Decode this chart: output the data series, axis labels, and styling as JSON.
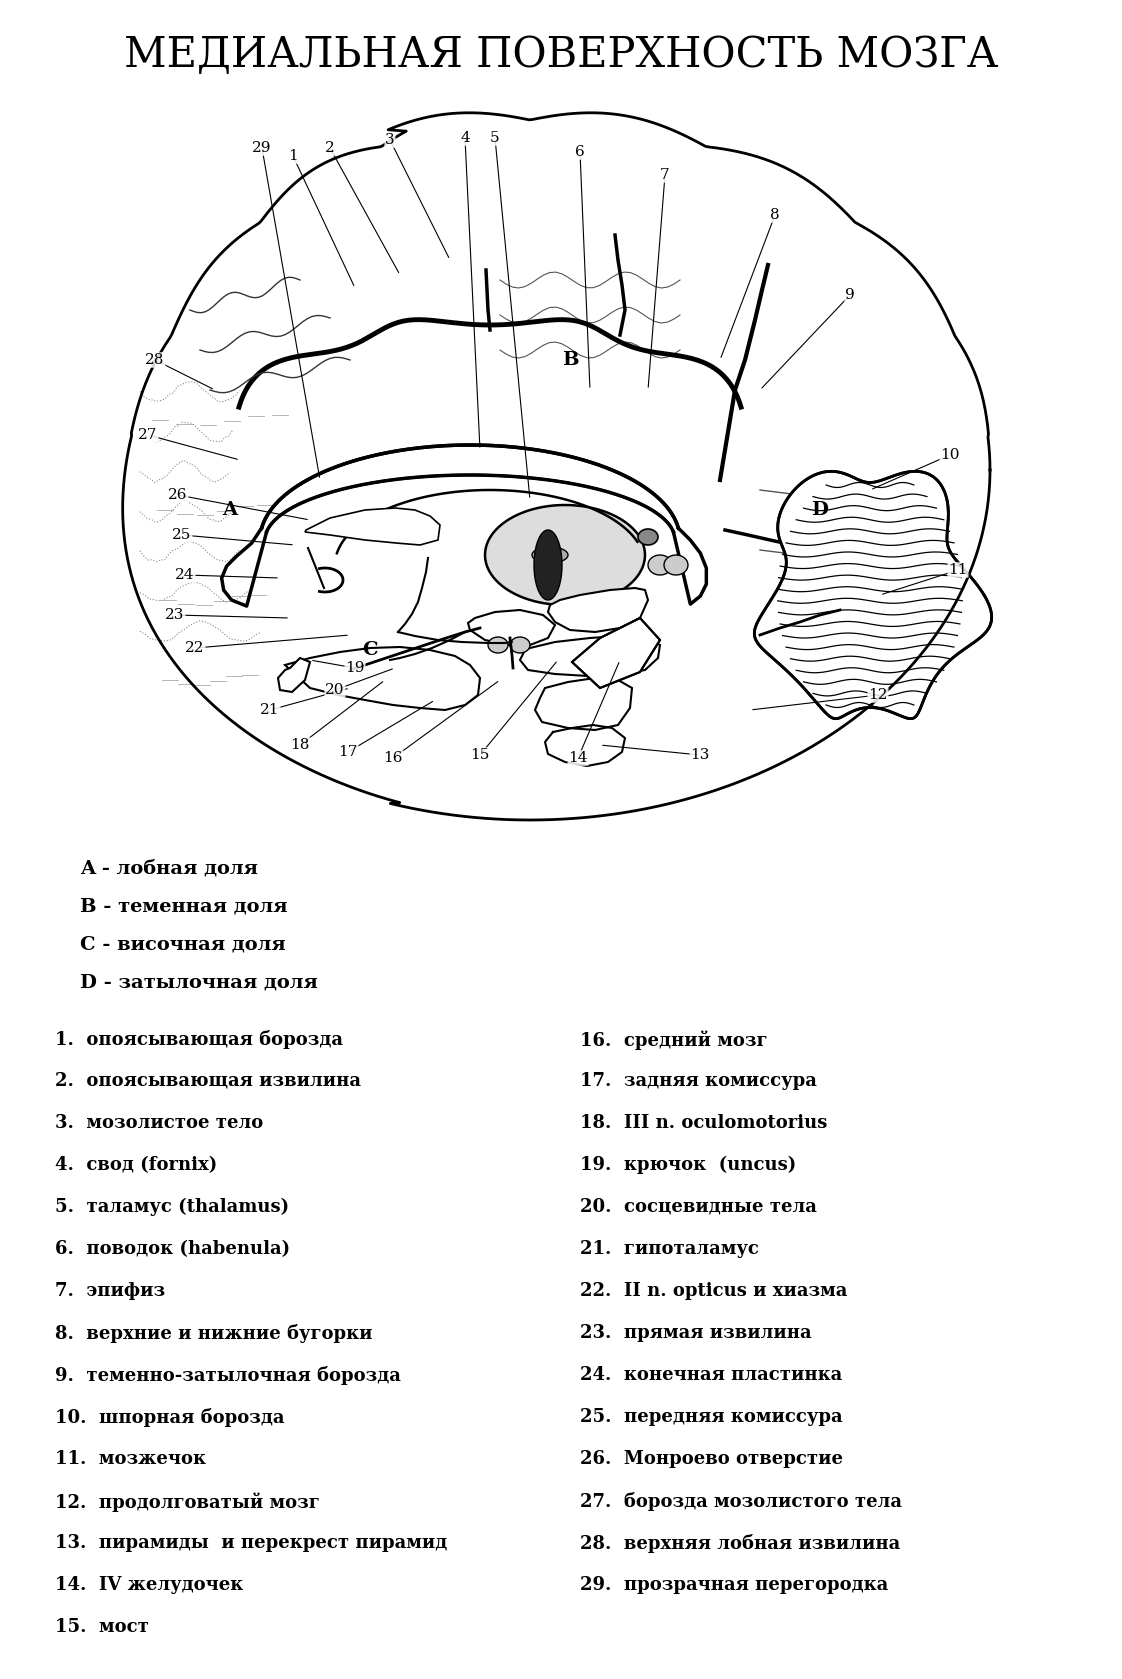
{
  "title": "МЕДИАЛЬНАЯ ПОВЕРХНОСТЬ МОЗГА",
  "title_fontsize": 30,
  "background_color": "#ffffff",
  "lobe_descriptions": [
    "A - лобная доля",
    "B - теменная доля",
    "C - височная доля",
    "D - затылочная доля"
  ],
  "left_labels": [
    {
      "num": "1",
      "text": "опоясывающая борозда"
    },
    {
      "num": "2",
      "text": "опоясывающая извилина"
    },
    {
      "num": "3",
      "text": "мозолистое тело"
    },
    {
      "num": "4",
      "text": "свод (fornix)"
    },
    {
      "num": "5",
      "text": "таламус (thalamus)"
    },
    {
      "num": "6",
      "text": "поводок (habenula)"
    },
    {
      "num": "7",
      "text": "эпифиз"
    },
    {
      "num": "8",
      "text": "верхние и нижние бугорки"
    },
    {
      "num": "9",
      "text": "теменно-затылочная борозда"
    },
    {
      "num": "10",
      "text": "шпорная борозда"
    },
    {
      "num": "11",
      "text": "мозжечок"
    },
    {
      "num": "12",
      "text": "продолговатый мозг"
    },
    {
      "num": "13",
      "text": "пирамиды  и перекрест пирамид"
    },
    {
      "num": "14",
      "text": "IV желудочек"
    },
    {
      "num": "15",
      "text": "мост"
    }
  ],
  "right_labels": [
    {
      "num": "16",
      "text": "средний мозг"
    },
    {
      "num": "17",
      "text": "задняя комиссура"
    },
    {
      "num": "18",
      "text": "III n. oculomotorius"
    },
    {
      "num": "19",
      "text": "крючок  (uncus)"
    },
    {
      "num": "20",
      "text": "сосцевидные тела"
    },
    {
      "num": "21",
      "text": "гипоталамус"
    },
    {
      "num": "22",
      "text": "II n. opticus и хиазма"
    },
    {
      "num": "23",
      "text": "прямая извилина"
    },
    {
      "num": "24",
      "text": "конечная пластинка"
    },
    {
      "num": "25",
      "text": "передняя комиссура"
    },
    {
      "num": "26",
      "text": "Монроево отверстие"
    },
    {
      "num": "27",
      "text": "борозда мозолистого тела"
    },
    {
      "num": "28",
      "text": "верхняя лобная извилина"
    },
    {
      "num": "29",
      "text": "прозрачная перегородка"
    }
  ]
}
